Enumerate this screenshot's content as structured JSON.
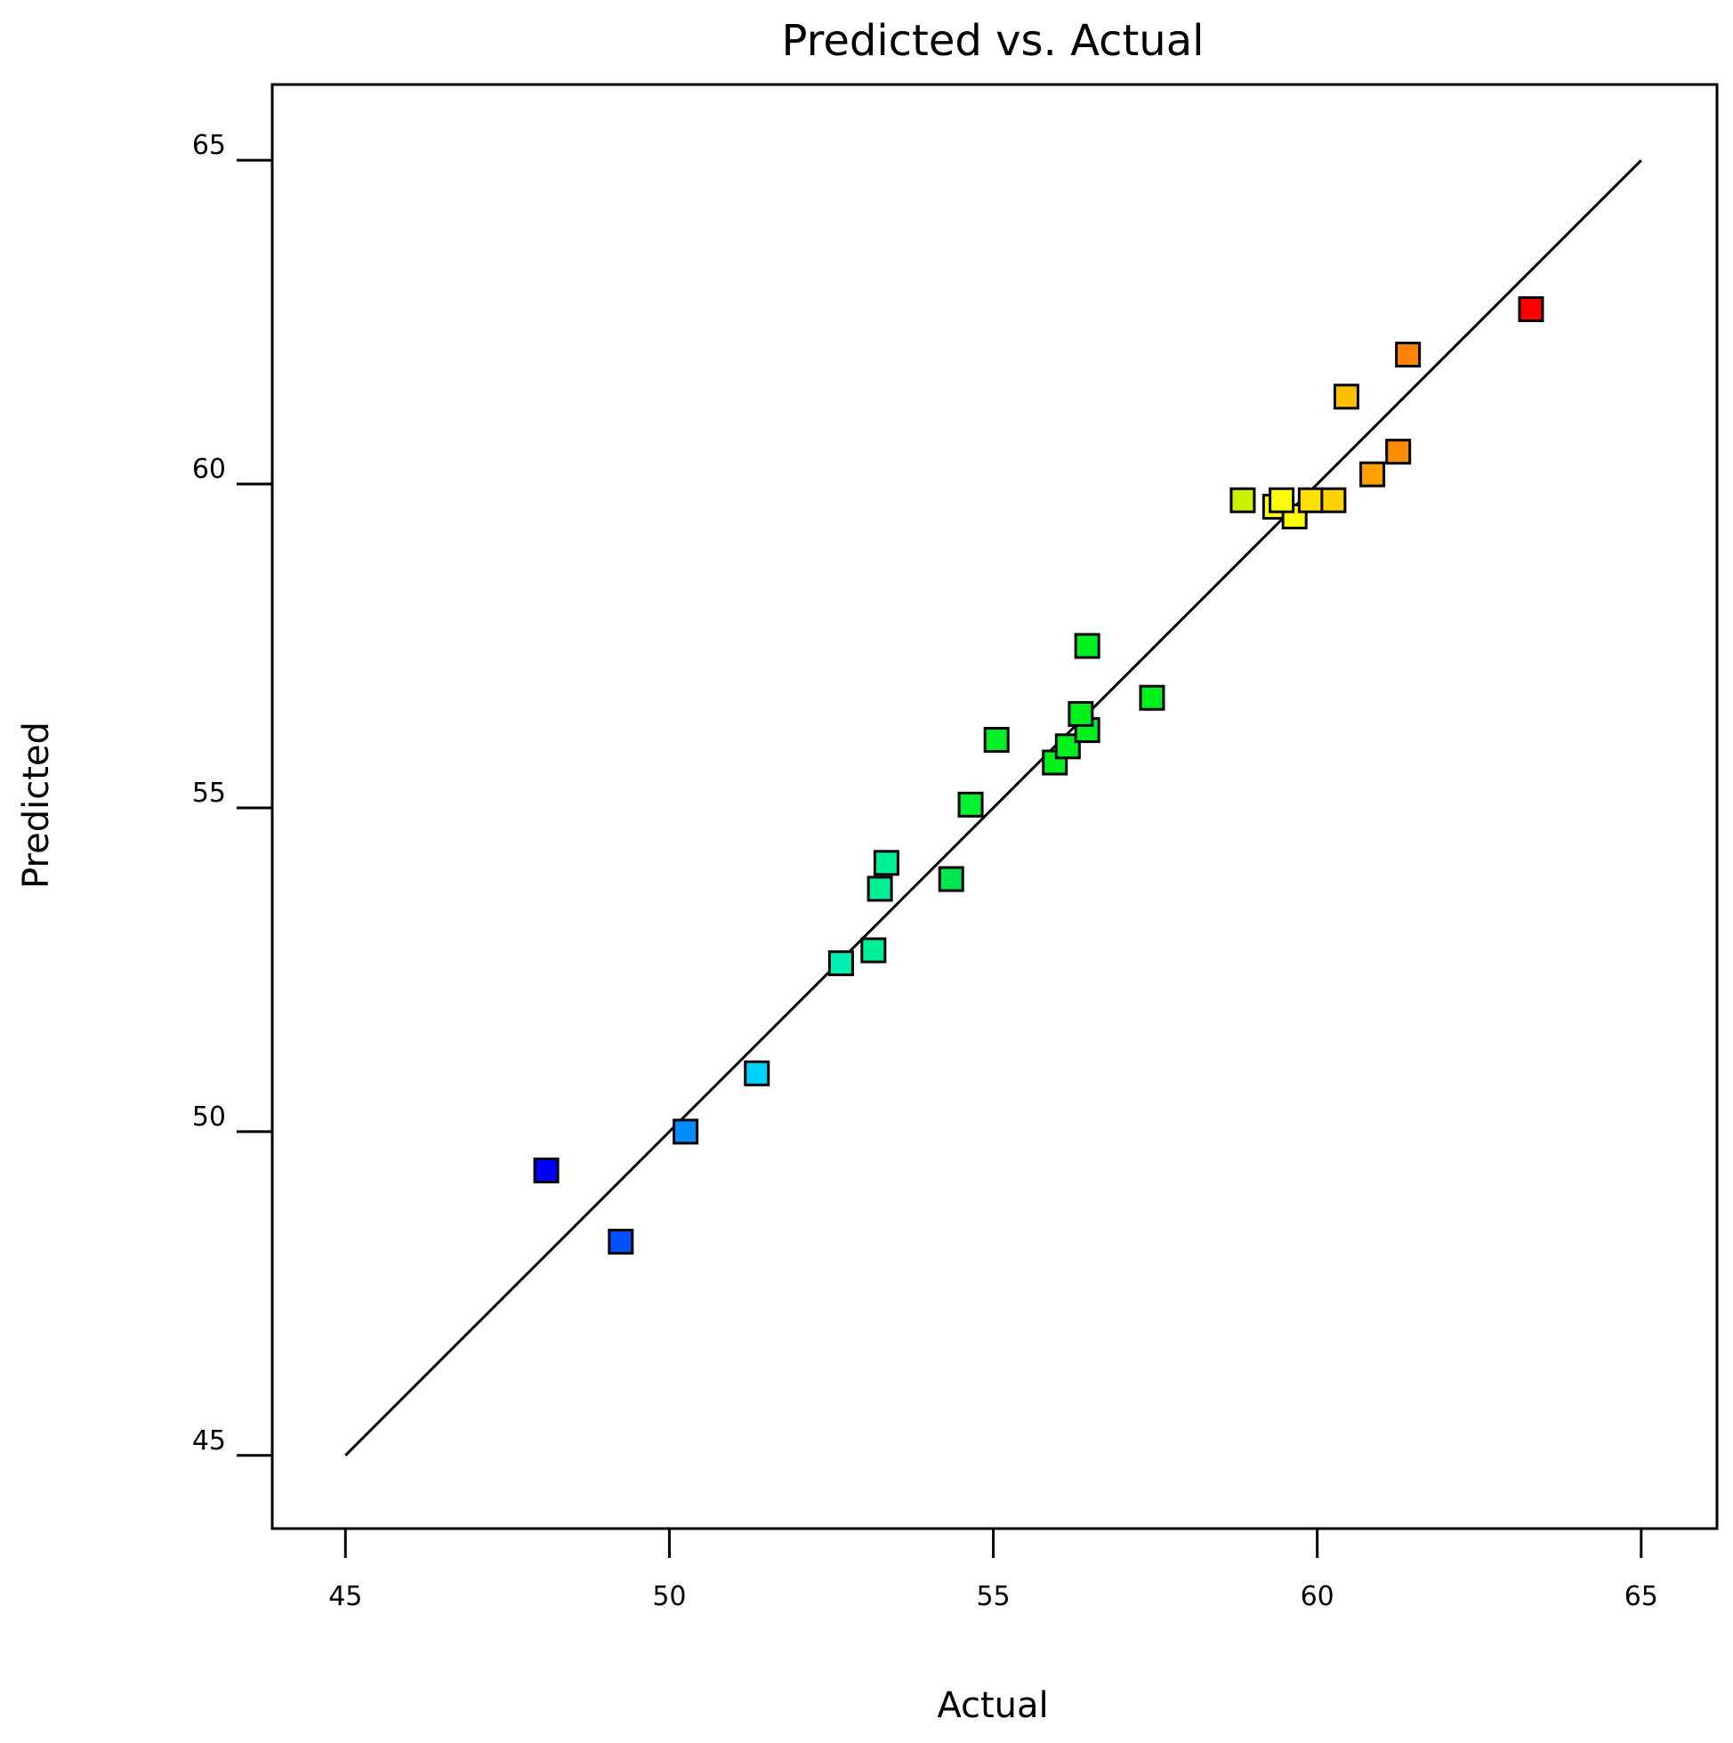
{
  "chart_data": {
    "type": "scatter",
    "title": "Predicted vs. Actual",
    "xlabel": "Actual",
    "ylabel": "Predicted",
    "xlim": [
      43.87,
      66.17
    ],
    "ylim": [
      43.87,
      66.17
    ],
    "xticks": [
      "45",
      "50",
      "55",
      "60",
      "65"
    ],
    "yticks": [
      "45",
      "50",
      "55",
      "60",
      "65"
    ],
    "xtick_values": [
      45,
      50,
      55,
      60,
      65
    ],
    "ytick_values": [
      45,
      50,
      55,
      60,
      65
    ],
    "grid": false,
    "reference_line": {
      "x": [
        45,
        65
      ],
      "y": [
        45,
        65
      ]
    },
    "points": [
      {
        "x": 48.1,
        "y": 49.4,
        "color": "#0000ff"
      },
      {
        "x": 49.25,
        "y": 48.3,
        "color": "#0050ff"
      },
      {
        "x": 50.25,
        "y": 50.0,
        "color": "#008cff"
      },
      {
        "x": 51.35,
        "y": 50.9,
        "color": "#00d2ff"
      },
      {
        "x": 52.65,
        "y": 52.6,
        "color": "#00f0b4"
      },
      {
        "x": 53.15,
        "y": 52.8,
        "color": "#00f096"
      },
      {
        "x": 53.25,
        "y": 53.75,
        "color": "#00f096"
      },
      {
        "x": 53.35,
        "y": 54.15,
        "color": "#00f096"
      },
      {
        "x": 54.35,
        "y": 53.9,
        "color": "#00e650"
      },
      {
        "x": 54.65,
        "y": 55.05,
        "color": "#00f032"
      },
      {
        "x": 55.05,
        "y": 56.05,
        "color": "#00f028"
      },
      {
        "x": 55.95,
        "y": 55.7,
        "color": "#00f01e"
      },
      {
        "x": 56.15,
        "y": 55.95,
        "color": "#00f01e"
      },
      {
        "x": 56.45,
        "y": 56.2,
        "color": "#00f01e"
      },
      {
        "x": 56.35,
        "y": 56.45,
        "color": "#00f01e"
      },
      {
        "x": 56.45,
        "y": 57.5,
        "color": "#00f01e"
      },
      {
        "x": 57.45,
        "y": 56.7,
        "color": "#00f01e"
      },
      {
        "x": 58.85,
        "y": 59.75,
        "color": "#c8f000"
      },
      {
        "x": 59.35,
        "y": 59.65,
        "color": "#ffff00"
      },
      {
        "x": 59.65,
        "y": 59.5,
        "color": "#ffff00"
      },
      {
        "x": 59.45,
        "y": 59.75,
        "color": "#ffff00"
      },
      {
        "x": 59.9,
        "y": 59.75,
        "color": "#ffe100"
      },
      {
        "x": 60.25,
        "y": 59.75,
        "color": "#ffd200"
      },
      {
        "x": 60.45,
        "y": 61.35,
        "color": "#ffbe00"
      },
      {
        "x": 60.85,
        "y": 60.15,
        "color": "#ffa000"
      },
      {
        "x": 61.25,
        "y": 60.5,
        "color": "#ff8c00"
      },
      {
        "x": 61.4,
        "y": 62.0,
        "color": "#ff8200"
      },
      {
        "x": 63.3,
        "y": 62.7,
        "color": "#ff0000"
      }
    ]
  }
}
